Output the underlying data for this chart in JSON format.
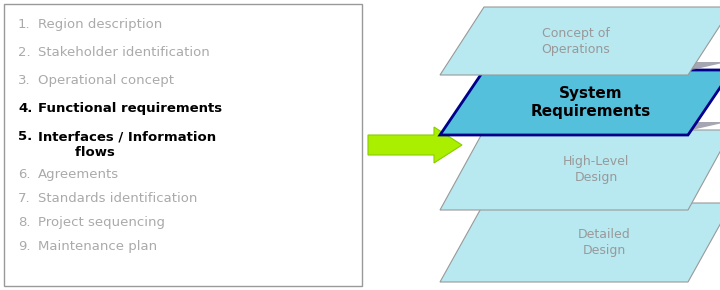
{
  "list_items": [
    {
      "num": "1.",
      "text": "Region description",
      "bold": false
    },
    {
      "num": "2.",
      "text": "Stakeholder identification",
      "bold": false
    },
    {
      "num": "3.",
      "text": "Operational concept",
      "bold": false
    },
    {
      "num": "4.",
      "text": "Functional requirements",
      "bold": true
    },
    {
      "num": "5.",
      "text": "Interfaces / Information\n        flows",
      "bold": true
    },
    {
      "num": "6.",
      "text": "Agreements",
      "bold": false
    },
    {
      "num": "7.",
      "text": "Standards identification",
      "bold": false
    },
    {
      "num": "8.",
      "text": "Project sequencing",
      "bold": false
    },
    {
      "num": "9.",
      "text": "Maintenance plan",
      "bold": false
    }
  ],
  "gray_color": "#aaaaaa",
  "black_color": "#000000",
  "box_bg": "#ffffff",
  "box_border": "#999999",
  "arrow_fill": "#aaee00",
  "arrow_edge": "#88cc00",
  "para_light": "#b8e8f0",
  "para_medium": "#7dd4e8",
  "sysreq_fill": "#55c0dc",
  "sysreq_border": "#00008b",
  "separator_color": "#888899",
  "text_gray": "#999999",
  "text_dark": "#000000",
  "bg": "#ffffff"
}
